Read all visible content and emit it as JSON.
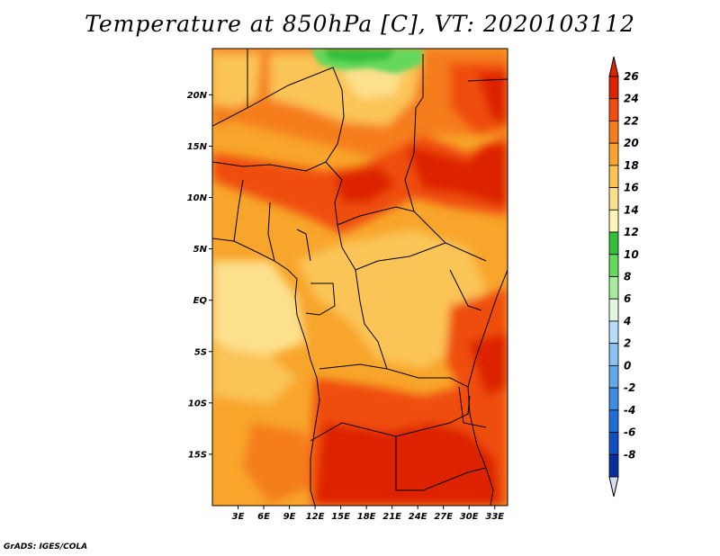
{
  "title": "Temperature at 850hPa [C], VT: 2020103112",
  "credit": "GrADS: IGES/COLA",
  "map": {
    "lon_range": [
      0,
      34.5
    ],
    "lat_range": [
      -20,
      24.5
    ],
    "lat_ticks": [
      {
        "value": 20,
        "label": "20N"
      },
      {
        "value": 15,
        "label": "15N"
      },
      {
        "value": 10,
        "label": "10N"
      },
      {
        "value": 5,
        "label": "5N"
      },
      {
        "value": 0,
        "label": "EQ"
      },
      {
        "value": -5,
        "label": "5S"
      },
      {
        "value": -10,
        "label": "10S"
      },
      {
        "value": -15,
        "label": "15S"
      }
    ],
    "lon_ticks": [
      {
        "value": 3,
        "label": "3E"
      },
      {
        "value": 6,
        "label": "6E"
      },
      {
        "value": 9,
        "label": "9E"
      },
      {
        "value": 12,
        "label": "12E"
      },
      {
        "value": 15,
        "label": "15E"
      },
      {
        "value": 18,
        "label": "18E"
      },
      {
        "value": 21,
        "label": "21E"
      },
      {
        "value": 24,
        "label": "24E"
      },
      {
        "value": 27,
        "label": "27E"
      },
      {
        "value": 30,
        "label": "30E"
      },
      {
        "value": 33,
        "label": "33E"
      }
    ]
  },
  "colorbar": {
    "levels": [
      {
        "label": "26",
        "color": "#dd2300"
      },
      {
        "label": "24",
        "color": "#ef4d10"
      },
      {
        "label": "22",
        "color": "#f57d1c"
      },
      {
        "label": "20",
        "color": "#f8a52b"
      },
      {
        "label": "18",
        "color": "#fbc456"
      },
      {
        "label": "16",
        "color": "#fde08c"
      },
      {
        "label": "14",
        "color": "#fff5b8"
      },
      {
        "label": "12",
        "color": "#34c03a"
      },
      {
        "label": "10",
        "color": "#63d85c"
      },
      {
        "label": "8",
        "color": "#a8ec9e"
      },
      {
        "label": "6",
        "color": "#e0f8e0"
      },
      {
        "label": "4",
        "color": "#b4dcf8"
      },
      {
        "label": "2",
        "color": "#8cc2f2"
      },
      {
        "label": "0",
        "color": "#64a8ea"
      },
      {
        "label": "-2",
        "color": "#3e8de2"
      },
      {
        "label": "-4",
        "color": "#1f6fd8"
      },
      {
        "label": "-6",
        "color": "#1050c2"
      },
      {
        "label": "-8",
        "color": "#082ea0"
      }
    ],
    "over_color": "#dd2300",
    "under_color": "#0a1c80",
    "bottom_cap_color": "#d8dcf4"
  }
}
